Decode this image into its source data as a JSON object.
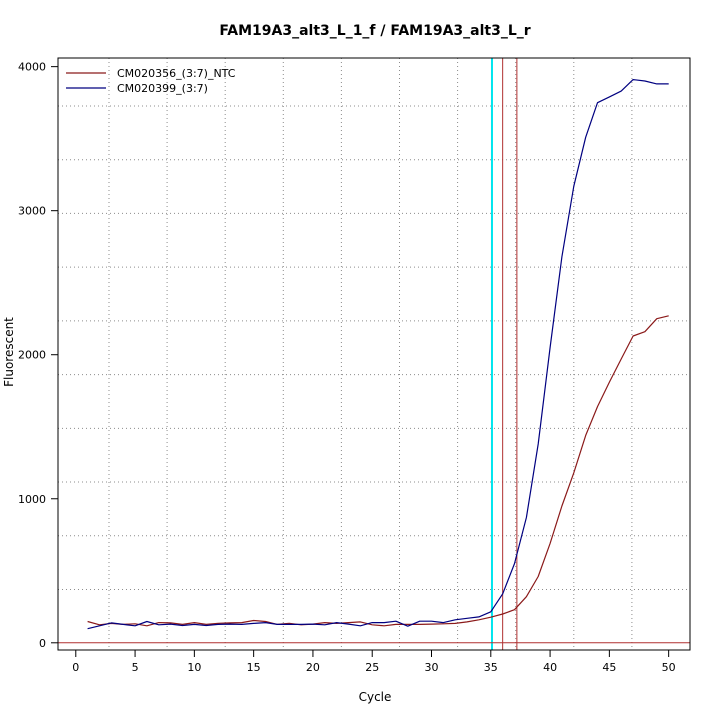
{
  "chart_data": {
    "type": "line",
    "title": "FAM19A3_alt3_L_1_f / FAM19A3_alt3_L_r",
    "xlabel": "Cycle",
    "ylabel": "Fluorescent",
    "xlim": [
      -1.5,
      51.8
    ],
    "ylim": [
      -50,
      4060
    ],
    "xticks": [
      0,
      5,
      10,
      15,
      20,
      25,
      30,
      35,
      40,
      45,
      50
    ],
    "yticks": [
      0,
      1000,
      2000,
      3000,
      4000
    ],
    "grid": true,
    "grid_style": "dotted",
    "legend_position": "top-left",
    "threshold_y": 0,
    "vertical_lines": [
      {
        "x": 35.1,
        "color": "#00e5ee"
      },
      {
        "x": 36.0,
        "color": "#b03030"
      },
      {
        "x": 37.2,
        "color": "#b03030"
      }
    ],
    "series": [
      {
        "name": "CM020356_(3:7)_NTC",
        "color": "#8b1a1a",
        "x": [
          1,
          2,
          3,
          4,
          5,
          6,
          7,
          8,
          9,
          10,
          11,
          12,
          13,
          14,
          15,
          16,
          17,
          18,
          19,
          20,
          21,
          22,
          23,
          24,
          25,
          26,
          27,
          28,
          29,
          30,
          31,
          32,
          33,
          34,
          35,
          36,
          37,
          38,
          39,
          40,
          41,
          42,
          43,
          44,
          45,
          46,
          47,
          48,
          49,
          50
        ],
        "y": [
          148,
          125,
          135,
          128,
          132,
          118,
          140,
          138,
          128,
          140,
          128,
          135,
          138,
          140,
          155,
          148,
          128,
          135,
          125,
          130,
          140,
          135,
          140,
          145,
          125,
          118,
          128,
          128,
          128,
          130,
          132,
          135,
          145,
          160,
          178,
          200,
          230,
          320,
          460,
          690,
          950,
          1180,
          1440,
          1640,
          1810,
          1970,
          2130,
          2160,
          2250,
          2270
        ]
      },
      {
        "name": "CM020399_(3:7)",
        "color": "#000080",
        "x": [
          1,
          2,
          3,
          4,
          5,
          6,
          7,
          8,
          9,
          10,
          11,
          12,
          13,
          14,
          15,
          16,
          17,
          18,
          19,
          20,
          21,
          22,
          23,
          24,
          25,
          26,
          27,
          28,
          29,
          30,
          31,
          32,
          33,
          34,
          35,
          36,
          37,
          38,
          39,
          40,
          41,
          42,
          43,
          44,
          45,
          46,
          47,
          48,
          49,
          50
        ],
        "y": [
          98,
          118,
          138,
          128,
          118,
          148,
          125,
          130,
          120,
          128,
          120,
          128,
          130,
          128,
          135,
          140,
          128,
          128,
          128,
          130,
          125,
          140,
          130,
          118,
          140,
          140,
          150,
          115,
          150,
          150,
          140,
          160,
          170,
          180,
          215,
          340,
          550,
          870,
          1380,
          2050,
          2680,
          3170,
          3510,
          3750,
          3790,
          3830,
          3910,
          3900,
          3880,
          3880
        ]
      }
    ]
  }
}
